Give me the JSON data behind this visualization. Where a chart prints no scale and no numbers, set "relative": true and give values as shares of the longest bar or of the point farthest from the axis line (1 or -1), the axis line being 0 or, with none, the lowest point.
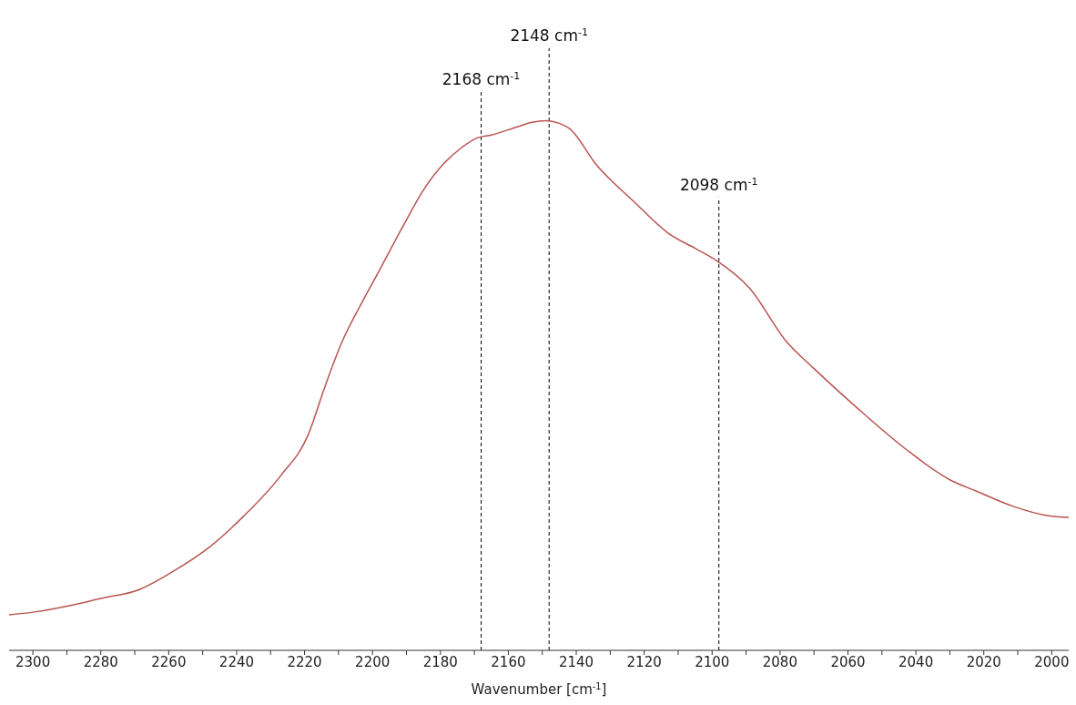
{
  "chart_data": {
    "type": "line",
    "relative": true,
    "xlabel": "Wavenumber [cm$^{-1}$]",
    "xlim": [
      2307,
      1995
    ],
    "xticks": [
      2300,
      {
        "value": 2290,
        "label": null
      },
      2280,
      {
        "value": 2270,
        "label": null
      },
      2260,
      {
        "value": 2250,
        "label": null
      },
      2240,
      {
        "value": 2230,
        "label": null
      },
      2220,
      {
        "value": 2210,
        "label": null
      },
      2200,
      {
        "value": 2190,
        "label": null
      },
      2180,
      {
        "value": 2170,
        "label": null
      },
      2160,
      {
        "value": 2150,
        "label": null
      },
      2140,
      {
        "value": 2130,
        "label": null
      },
      2120,
      {
        "value": 2110,
        "label": null
      },
      2100,
      {
        "value": 2090,
        "label": null
      },
      2080,
      {
        "value": 2070,
        "label": null
      },
      2060,
      {
        "value": 2050,
        "label": null
      },
      2040,
      {
        "value": 2030,
        "label": null
      },
      2020,
      {
        "value": 2010,
        "label": null
      },
      2000
    ],
    "x": [
      2307,
      2300,
      2288,
      2280,
      2269,
      2259,
      2248,
      2238,
      2227,
      2219,
      2214,
      2209,
      2203,
      2198,
      2191,
      2185,
      2179,
      2174,
      2169,
      2165,
      2158,
      2153,
      2149,
      2145,
      2142,
      2134,
      2123,
      2113,
      2105,
      2099,
      2089,
      2078,
      2070,
      2057,
      2043,
      2030,
      2022,
      2011,
      2001,
      1995
    ],
    "series": [
      {
        "color": "#b85450",
        "values": [
          0.067,
          0.072,
          0.086,
          0.098,
          0.114,
          0.148,
          0.195,
          0.253,
          0.33,
          0.406,
          0.498,
          0.582,
          0.658,
          0.717,
          0.801,
          0.869,
          0.919,
          0.948,
          0.968,
          0.973,
          0.987,
          0.997,
          1,
          0.995,
          0.985,
          0.916,
          0.847,
          0.788,
          0.759,
          0.737,
          0.684,
          0.582,
          0.532,
          0.456,
          0.38,
          0.322,
          0.3,
          0.271,
          0.254,
          0.251
        ]
      }
    ],
    "ref_lines": [
      {
        "axis": "x",
        "value": 2168,
        "label": "2168 cm$^{-1}$",
        "color": "#000000",
        "line_style": "dashed"
      },
      {
        "axis": "x",
        "value": 2148,
        "label": "2148 cm$^{-1}$",
        "color": "#000000",
        "line_style": "dashed"
      },
      {
        "axis": "x",
        "value": 2098,
        "label": "2098 cm$^{-1}$",
        "color": "#000000",
        "line_style": "dashed"
      }
    ],
    "marker": "none",
    "line_style": "solid"
  }
}
